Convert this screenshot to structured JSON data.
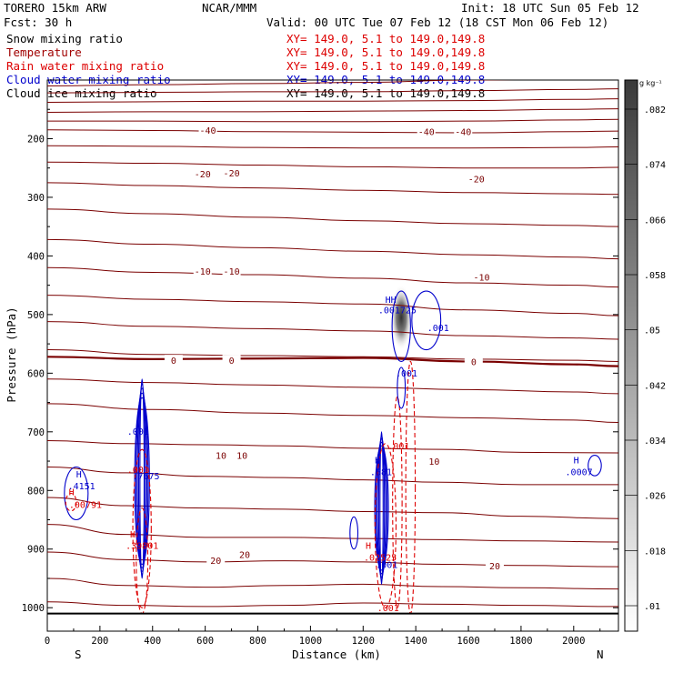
{
  "header": {
    "model": "TORERO  15km ARW",
    "org": "NCAR/MMM",
    "init": "Init: 18 UTC Sun 05 Feb 12",
    "fcst": "Fcst:   30 h",
    "valid": "Valid: 00 UTC Tue 07 Feb 12 (18 CST Mon 06 Feb 12)"
  },
  "fields": [
    {
      "name": "Snow mixing ratio",
      "xy": "XY= 149.0,  5.1 to 149.0,149.8",
      "color": "#000000"
    },
    {
      "name": "Temperature",
      "xy": "XY= 149.0,  5.1 to 149.0,149.8",
      "color": "#a00000"
    },
    {
      "name": "Rain water mixing ratio",
      "xy": "XY= 149.0,  5.1 to 149.0,149.8",
      "color": "#dd0000"
    },
    {
      "name": "Cloud water mixing ratio",
      "xy": "XY= 149.0,  5.1 to 149.0,149.8",
      "color": "#0000cc"
    },
    {
      "name": "Cloud ice mixing ratio",
      "xy": "XY= 149.0,  5.1 to 149.0,149.8",
      "color": "#000000"
    }
  ],
  "colors": {
    "temperature": "#7a0000",
    "rain": "#dd0000",
    "cloud_water": "#0000cc",
    "snow": "#000000"
  },
  "chart_data": {
    "type": "cross-section",
    "xlabel": "Distance (km)",
    "ylabel": "Pressure (hPa)",
    "xlim": [
      0,
      2170
    ],
    "ylim": [
      1040,
      100
    ],
    "x_ticks": [
      0,
      200,
      400,
      600,
      800,
      1000,
      1200,
      1400,
      1600,
      1800,
      2000
    ],
    "y_ticks": [
      200,
      300,
      400,
      500,
      600,
      700,
      800,
      900,
      1000
    ],
    "x_end_labels": {
      "left": "S",
      "right": "N"
    },
    "colorbar": {
      "unit": "g kg⁻¹",
      "ticks": [
        ".01",
        ".018",
        ".026",
        ".034",
        ".042",
        ".05",
        ".058",
        ".066",
        ".074",
        ".082"
      ]
    },
    "temperature_isotherms": [
      {
        "x": [
          0,
          400,
          800,
          1200,
          1600,
          2000,
          2170
        ],
        "p": [
          110,
          108,
          106,
          104,
          100,
          98,
          96
        ]
      },
      {
        "x": [
          0,
          400,
          800,
          1200,
          1600,
          2000,
          2170
        ],
        "p": [
          122,
          121,
          120,
          120,
          118,
          116,
          115
        ]
      },
      {
        "x": [
          0,
          400,
          800,
          1200,
          1600,
          2000,
          2170
        ],
        "p": [
          138,
          137,
          136,
          136,
          135,
          133,
          132
        ]
      },
      {
        "x": [
          0,
          400,
          800,
          1200,
          1600,
          2000,
          2170
        ],
        "p": [
          155,
          154,
          154,
          153,
          152,
          150,
          149
        ]
      },
      {
        "x": [
          0,
          400,
          800,
          1200,
          1600,
          2000,
          2170
        ],
        "p": [
          170,
          170,
          171,
          171,
          170,
          168,
          167
        ]
      },
      {
        "x": [
          0,
          400,
          800,
          1200,
          1600,
          2000,
          2170
        ],
        "p": [
          185,
          186,
          188,
          189,
          190,
          188,
          187
        ]
      },
      {
        "x": [
          0,
          400,
          800,
          1200,
          1600,
          2000,
          2170
        ],
        "p": [
          212,
          213,
          215,
          216,
          216,
          215,
          214
        ]
      },
      {
        "x": [
          0,
          400,
          800,
          1200,
          1600,
          2000,
          2170
        ],
        "p": [
          240,
          242,
          245,
          248,
          250,
          250,
          249
        ]
      },
      {
        "x": [
          0,
          400,
          800,
          1200,
          1600,
          2000,
          2170
        ],
        "p": [
          275,
          280,
          284,
          288,
          292,
          294,
          295
        ]
      },
      {
        "x": [
          0,
          400,
          800,
          1200,
          1600,
          2000,
          2170
        ],
        "p": [
          320,
          328,
          334,
          340,
          345,
          348,
          350
        ]
      },
      {
        "x": [
          0,
          400,
          800,
          1200,
          1600,
          2000,
          2170
        ],
        "p": [
          372,
          380,
          386,
          392,
          398,
          402,
          405
        ]
      },
      {
        "x": [
          0,
          400,
          800,
          1200,
          1600,
          2000,
          2170
        ],
        "p": [
          420,
          428,
          432,
          438,
          446,
          450,
          453
        ]
      },
      {
        "x": [
          0,
          400,
          800,
          1200,
          1600,
          2000,
          2170
        ],
        "p": [
          467,
          474,
          478,
          482,
          492,
          498,
          502
        ]
      },
      {
        "x": [
          0,
          400,
          800,
          1200,
          1600,
          2000,
          2170
        ],
        "p": [
          512,
          520,
          524,
          528,
          536,
          540,
          542
        ]
      },
      {
        "x": [
          0,
          400,
          800,
          1200,
          1600,
          2000,
          2170
        ],
        "p": [
          560,
          568,
          570,
          572,
          576,
          578,
          580
        ]
      },
      {
        "x": [
          0,
          400,
          800,
          1200,
          1600,
          2000,
          2170
        ],
        "p": [
          572,
          576,
          575,
          574,
          580,
          585,
          588
        ],
        "bold": true
      },
      {
        "x": [
          0,
          400,
          800,
          1200,
          1600,
          2000,
          2170
        ],
        "p": [
          610,
          616,
          620,
          624,
          628,
          632,
          635
        ]
      },
      {
        "x": [
          0,
          400,
          800,
          1200,
          1600,
          2000,
          2170
        ],
        "p": [
          652,
          662,
          668,
          672,
          676,
          680,
          684
        ]
      },
      {
        "x": [
          0,
          300,
          600,
          900,
          1200,
          1500,
          1800,
          2170
        ],
        "p": [
          715,
          720,
          722,
          724,
          728,
          730,
          735,
          736
        ]
      },
      {
        "x": [
          0,
          300,
          600,
          900,
          1200,
          1500,
          1800,
          2170
        ],
        "p": [
          760,
          770,
          776,
          778,
          782,
          786,
          790,
          790
        ]
      },
      {
        "x": [
          0,
          300,
          600,
          900,
          1200,
          1500,
          1800,
          2170
        ],
        "p": [
          812,
          826,
          830,
          832,
          836,
          838,
          844,
          848
        ]
      },
      {
        "x": [
          0,
          300,
          600,
          900,
          1200,
          1500,
          1800,
          2170
        ],
        "p": [
          858,
          875,
          880,
          880,
          882,
          884,
          886,
          888
        ]
      },
      {
        "x": [
          0,
          300,
          600,
          900,
          1200,
          1500,
          1800,
          2170
        ],
        "p": [
          905,
          918,
          922,
          920,
          922,
          926,
          928,
          930
        ]
      },
      {
        "x": [
          0,
          300,
          600,
          900,
          1200,
          1500,
          1800,
          2170
        ],
        "p": [
          950,
          962,
          965,
          962,
          960,
          964,
          966,
          968
        ]
      },
      {
        "x": [
          0,
          300,
          600,
          900,
          1200,
          1500,
          1800,
          2170
        ],
        "p": [
          990,
          996,
          998,
          996,
          992,
          994,
          996,
          998
        ]
      }
    ],
    "isotherm_labels": [
      {
        "text": "-40",
        "x": 610,
        "p": 185
      },
      {
        "text": "-40",
        "x": 1440,
        "p": 188
      },
      {
        "text": "-40",
        "x": 1580,
        "p": 188
      },
      {
        "text": "-20",
        "x": 590,
        "p": 260
      },
      {
        "text": "-20",
        "x": 700,
        "p": 258
      },
      {
        "text": "-20",
        "x": 1630,
        "p": 268
      },
      {
        "text": "-10",
        "x": 590,
        "p": 426
      },
      {
        "text": "-10",
        "x": 700,
        "p": 426
      },
      {
        "text": "-10",
        "x": 1650,
        "p": 436
      },
      {
        "text": "0",
        "x": 480,
        "p": 578
      },
      {
        "text": "0",
        "x": 700,
        "p": 578
      },
      {
        "text": "0",
        "x": 1620,
        "p": 580
      },
      {
        "text": "10",
        "x": 660,
        "p": 740
      },
      {
        "text": "10",
        "x": 740,
        "p": 740
      },
      {
        "text": "10",
        "x": 1470,
        "p": 750
      },
      {
        "text": "20",
        "x": 640,
        "p": 919
      },
      {
        "text": "20",
        "x": 750,
        "p": 909
      },
      {
        "text": "20",
        "x": 1700,
        "p": 928
      }
    ],
    "annotations": [
      {
        "text": "H",
        "x": 120,
        "p": 778,
        "series": "cloud_water"
      },
      {
        "text": ".4151",
        "x": 130,
        "p": 798,
        "series": "cloud_water"
      },
      {
        "text": "H",
        "x": 92,
        "p": 808,
        "series": "rain"
      },
      {
        "text": ".00791",
        "x": 145,
        "p": 830,
        "series": "rain"
      },
      {
        "text": ".001",
        "x": 345,
        "p": 705,
        "series": "cloud_water"
      },
      {
        "text": ".001",
        "x": 345,
        "p": 770,
        "series": "rain"
      },
      {
        "text": ".7675",
        "x": 375,
        "p": 781,
        "series": "cloud_water"
      },
      {
        "text": "H",
        "x": 325,
        "p": 880,
        "series": "rain"
      },
      {
        "text": ".39801",
        "x": 360,
        "p": 900,
        "series": "rain"
      },
      {
        "text": "H",
        "x": 1255,
        "p": 754,
        "series": "cloud_water"
      },
      {
        "text": ".681",
        "x": 1268,
        "p": 774,
        "series": "cloud_water"
      },
      {
        "text": ".001",
        "x": 1335,
        "p": 730,
        "series": "rain"
      },
      {
        "text": "H",
        "x": 1220,
        "p": 900,
        "series": "rain"
      },
      {
        "text": ".02525",
        "x": 1265,
        "p": 920,
        "series": "rain"
      },
      {
        "text": ".001",
        "x": 1290,
        "p": 932,
        "series": "cloud_water"
      },
      {
        "text": ".001",
        "x": 1295,
        "p": 1006,
        "series": "rain"
      },
      {
        "text": "HH",
        "x": 1305,
        "p": 480,
        "series": "cloud_water"
      },
      {
        "text": ".001725",
        "x": 1330,
        "p": 498,
        "series": "cloud_water"
      },
      {
        "text": ".001",
        "x": 1485,
        "p": 528,
        "series": "cloud_water"
      },
      {
        "text": ".001",
        "x": 1365,
        "p": 606,
        "series": "cloud_water"
      },
      {
        "text": "H",
        "x": 2010,
        "p": 754,
        "series": "cloud_water"
      },
      {
        "text": ".0007",
        "x": 2020,
        "p": 774,
        "series": "cloud_water"
      }
    ],
    "snow_max": {
      "x": 1345,
      "p": 505,
      "max_gkg": 0.086
    }
  }
}
